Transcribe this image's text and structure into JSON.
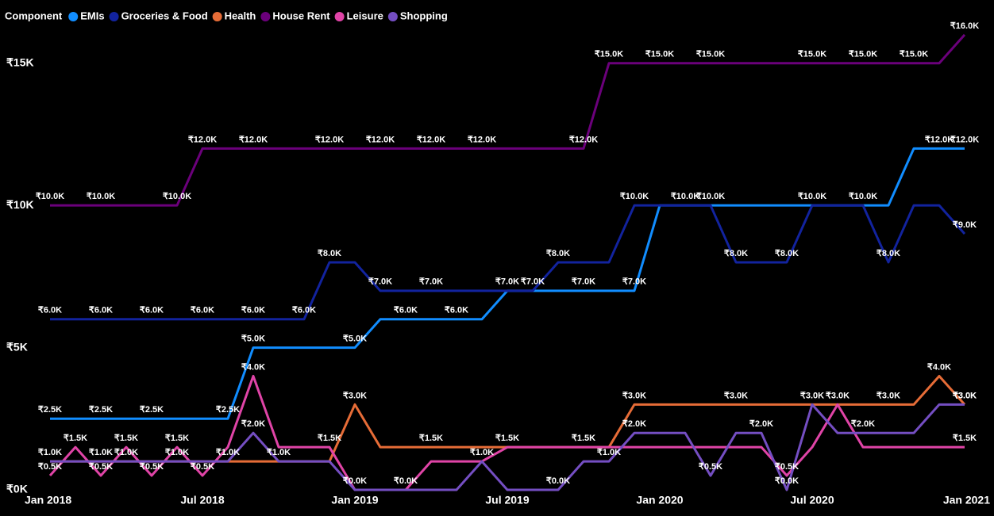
{
  "chart_data": {
    "type": "line",
    "legend_title": "Component",
    "categories": [
      "Jan 2018",
      null,
      null,
      null,
      null,
      null,
      "Jul 2018",
      null,
      null,
      null,
      null,
      null,
      "Jan 2019",
      null,
      null,
      null,
      null,
      null,
      "Jul 2019",
      null,
      null,
      null,
      null,
      null,
      "Jan 2020",
      null,
      null,
      null,
      null,
      null,
      "Jul 2020",
      null,
      null,
      null,
      null,
      null,
      "Jan 2021"
    ],
    "ylim": [
      0,
      17000
    ],
    "yticks": [
      {
        "value": 0,
        "label": "₹0K"
      },
      {
        "value": 5000,
        "label": "₹5K"
      },
      {
        "value": 10000,
        "label": "₹10K"
      },
      {
        "value": 15000,
        "label": "₹15K"
      }
    ],
    "grid": false,
    "legend": "top-left",
    "series": [
      {
        "name": "EMIs",
        "color": "#118dff",
        "values": [
          2500,
          2500,
          2500,
          2500,
          2500,
          2500,
          2500,
          2500,
          5000,
          5000,
          5000,
          5000,
          5000,
          6000,
          6000,
          6000,
          6000,
          6000,
          7000,
          7000,
          7000,
          7000,
          7000,
          7000,
          10000,
          10000,
          10000,
          10000,
          10000,
          10000,
          10000,
          10000,
          10000,
          10000,
          12000,
          12000,
          12000
        ],
        "value_labels": [
          "₹2.5K",
          null,
          "₹2.5K",
          null,
          "₹2.5K",
          null,
          null,
          "₹2.5K",
          "₹5.0K",
          null,
          null,
          null,
          "₹5.0K",
          null,
          "₹6.0K",
          null,
          "₹6.0K",
          null,
          null,
          "₹7.0K",
          null,
          "₹7.0K",
          null,
          "₹7.0K",
          null,
          "₹10.0K",
          "₹10.0K",
          null,
          null,
          null,
          "₹10.0K",
          null,
          "₹10.0K",
          null,
          null,
          "₹12.0K",
          "₹12.0K"
        ]
      },
      {
        "name": "Groceries & Food",
        "color": "#12239e",
        "values": [
          6000,
          6000,
          6000,
          6000,
          6000,
          6000,
          6000,
          6000,
          6000,
          6000,
          6000,
          8000,
          8000,
          7000,
          7000,
          7000,
          7000,
          7000,
          7000,
          7000,
          8000,
          8000,
          8000,
          10000,
          10000,
          10000,
          10000,
          8000,
          8000,
          8000,
          10000,
          10000,
          10000,
          8000,
          10000,
          10000,
          9000
        ],
        "value_labels": [
          "₹6.0K",
          null,
          "₹6.0K",
          null,
          "₹6.0K",
          null,
          "₹6.0K",
          null,
          "₹6.0K",
          null,
          "₹6.0K",
          "₹8.0K",
          null,
          "₹7.0K",
          null,
          "₹7.0K",
          null,
          null,
          "₹7.0K",
          null,
          "₹8.0K",
          null,
          null,
          "₹10.0K",
          null,
          null,
          null,
          "₹8.0K",
          null,
          "₹8.0K",
          null,
          null,
          null,
          "₹8.0K",
          null,
          null,
          "₹9.0K"
        ]
      },
      {
        "name": "Health",
        "color": "#e66c37",
        "values": [
          1000,
          1000,
          1000,
          1000,
          1000,
          1000,
          1000,
          1000,
          1000,
          1000,
          1000,
          1000,
          3000,
          1500,
          1500,
          1500,
          1500,
          1500,
          1500,
          1500,
          1500,
          1500,
          1500,
          3000,
          3000,
          3000,
          3000,
          3000,
          3000,
          3000,
          3000,
          3000,
          3000,
          3000,
          3000,
          4000,
          3000
        ],
        "value_labels": [
          null,
          null,
          null,
          null,
          null,
          null,
          null,
          "₹1.0K",
          null,
          null,
          null,
          null,
          "₹3.0K",
          null,
          null,
          "₹1.5K",
          null,
          null,
          "₹1.5K",
          null,
          null,
          "₹1.5K",
          null,
          "₹3.0K",
          null,
          null,
          null,
          "₹3.0K",
          null,
          null,
          "₹3.0K",
          null,
          null,
          "₹3.0K",
          null,
          "₹4.0K",
          "₹3.0K"
        ]
      },
      {
        "name": "House Rent",
        "color": "#6b007b",
        "values": [
          10000,
          10000,
          10000,
          10000,
          10000,
          10000,
          12000,
          12000,
          12000,
          12000,
          12000,
          12000,
          12000,
          12000,
          12000,
          12000,
          12000,
          12000,
          12000,
          12000,
          12000,
          12000,
          15000,
          15000,
          15000,
          15000,
          15000,
          15000,
          15000,
          15000,
          15000,
          15000,
          15000,
          15000,
          15000,
          15000,
          16000
        ],
        "value_labels": [
          "₹10.0K",
          null,
          "₹10.0K",
          null,
          null,
          "₹10.0K",
          "₹12.0K",
          null,
          "₹12.0K",
          null,
          null,
          "₹12.0K",
          null,
          "₹12.0K",
          null,
          "₹12.0K",
          null,
          "₹12.0K",
          null,
          null,
          null,
          "₹12.0K",
          "₹15.0K",
          null,
          "₹15.0K",
          null,
          "₹15.0K",
          null,
          null,
          null,
          "₹15.0K",
          null,
          "₹15.0K",
          null,
          "₹15.0K",
          null,
          "₹16.0K"
        ]
      },
      {
        "name": "Leisure",
        "color": "#e044a7",
        "values": [
          500,
          1500,
          500,
          1500,
          500,
          1500,
          500,
          1500,
          4000,
          1500,
          1500,
          1500,
          0,
          0,
          0,
          1000,
          1000,
          1000,
          1500,
          1500,
          1500,
          1500,
          1500,
          1500,
          1500,
          1500,
          1500,
          1500,
          1500,
          500,
          1500,
          3000,
          1500,
          1500,
          1500,
          1500,
          1500
        ],
        "value_labels": [
          "₹0.5K",
          "₹1.5K",
          "₹0.5K",
          "₹1.5K",
          "₹0.5K",
          "₹1.5K",
          "₹0.5K",
          null,
          "₹4.0K",
          null,
          null,
          "₹1.5K",
          "₹0.0K",
          null,
          "₹0.0K",
          null,
          null,
          "₹1.0K",
          null,
          null,
          null,
          null,
          null,
          null,
          null,
          null,
          null,
          null,
          null,
          "₹0.5K",
          null,
          "₹3.0K",
          null,
          null,
          null,
          null,
          "₹1.5K"
        ]
      },
      {
        "name": "Shopping",
        "color": "#744ec2",
        "values": [
          1000,
          1000,
          1000,
          1000,
          1000,
          1000,
          1000,
          1000,
          2000,
          1000,
          1000,
          1000,
          0,
          0,
          0,
          0,
          0,
          1000,
          0,
          0,
          0,
          1000,
          1000,
          2000,
          2000,
          2000,
          500,
          2000,
          2000,
          0,
          3000,
          2000,
          2000,
          2000,
          2000,
          3000,
          3000
        ],
        "value_labels": [
          "₹1.0K",
          null,
          "₹1.0K",
          "₹1.0K",
          null,
          "₹1.0K",
          null,
          null,
          "₹2.0K",
          "₹1.0K",
          null,
          null,
          null,
          null,
          null,
          null,
          null,
          null,
          null,
          null,
          "₹0.0K",
          null,
          "₹1.0K",
          "₹2.0K",
          null,
          null,
          "₹0.5K",
          null,
          "₹2.0K",
          "₹0.0K",
          null,
          null,
          "₹2.0K",
          null,
          null,
          null,
          "₹3.0K"
        ]
      }
    ]
  }
}
